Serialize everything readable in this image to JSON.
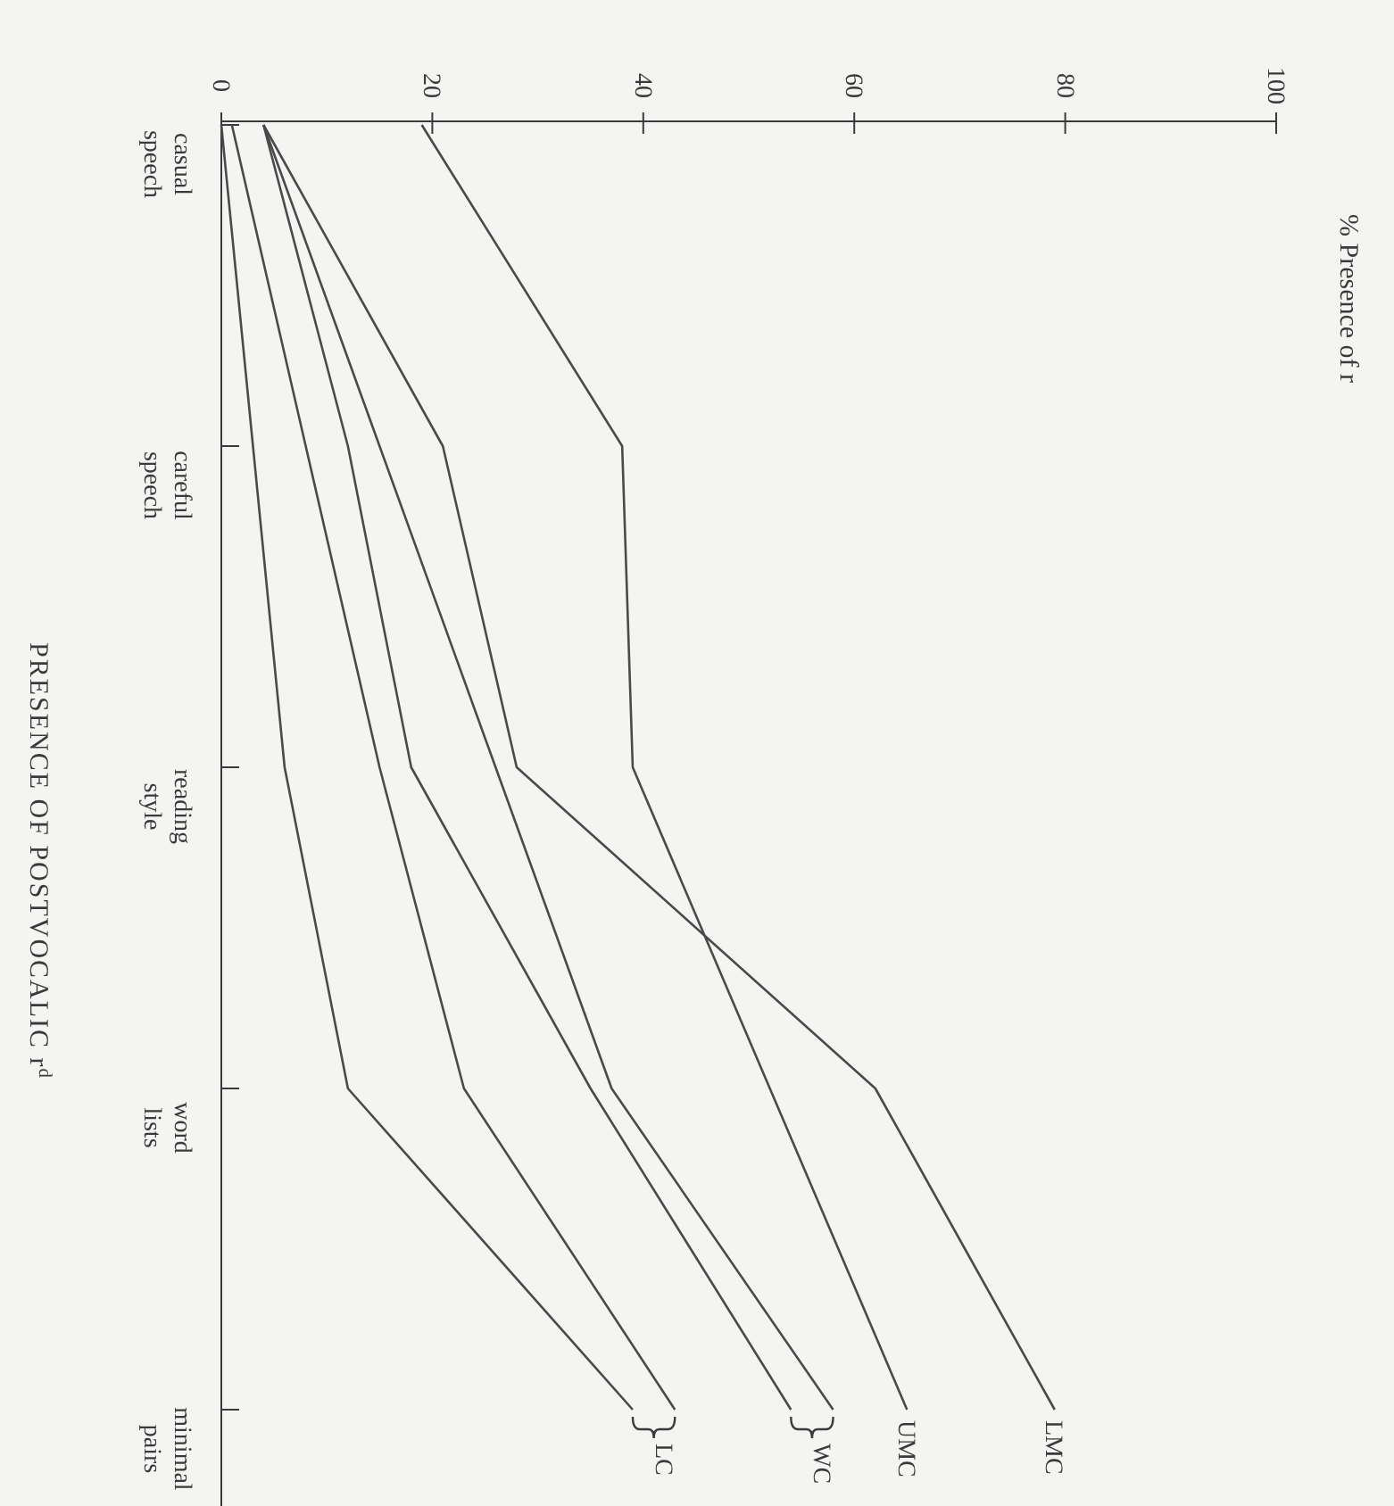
{
  "chart_data": {
    "type": "line",
    "title": "PRESENCE OF POSTVOCALIC r$^{d}$",
    "annotations": [
      "% Presence of r"
    ],
    "orientation": "horizontal",
    "legend": "bottom",
    "categories": [
      "casual\nspeech",
      "careful\nspeech",
      "reading\nstyle",
      "word\nlists",
      "minimal\npairs"
    ],
    "xlim": [
      0,
      100
    ],
    "xticks": [
      0,
      20,
      40,
      60,
      80,
      100
    ],
    "series": [
      {
        "name": "LMC",
        "color": "#4a4a4a",
        "values": [
          4,
          21,
          28,
          62,
          79
        ]
      },
      {
        "name": "UMC",
        "color": "#4a4a4a",
        "values": [
          19,
          38,
          39,
          52,
          65
        ]
      },
      {
        "name": "WC",
        "color": "#4a4a4a",
        "values": [
          4,
          15,
          26,
          37,
          58
        ]
      },
      {
        "color": "#4a4a4a",
        "values": [
          4,
          12,
          18,
          35,
          54
        ]
      },
      {
        "name": "LC",
        "color": "#4a4a4a",
        "values": [
          1,
          8,
          15,
          23,
          43
        ]
      },
      {
        "color": "#4a4a4a",
        "values": [
          0,
          3,
          6,
          12,
          39
        ]
      }
    ]
  }
}
